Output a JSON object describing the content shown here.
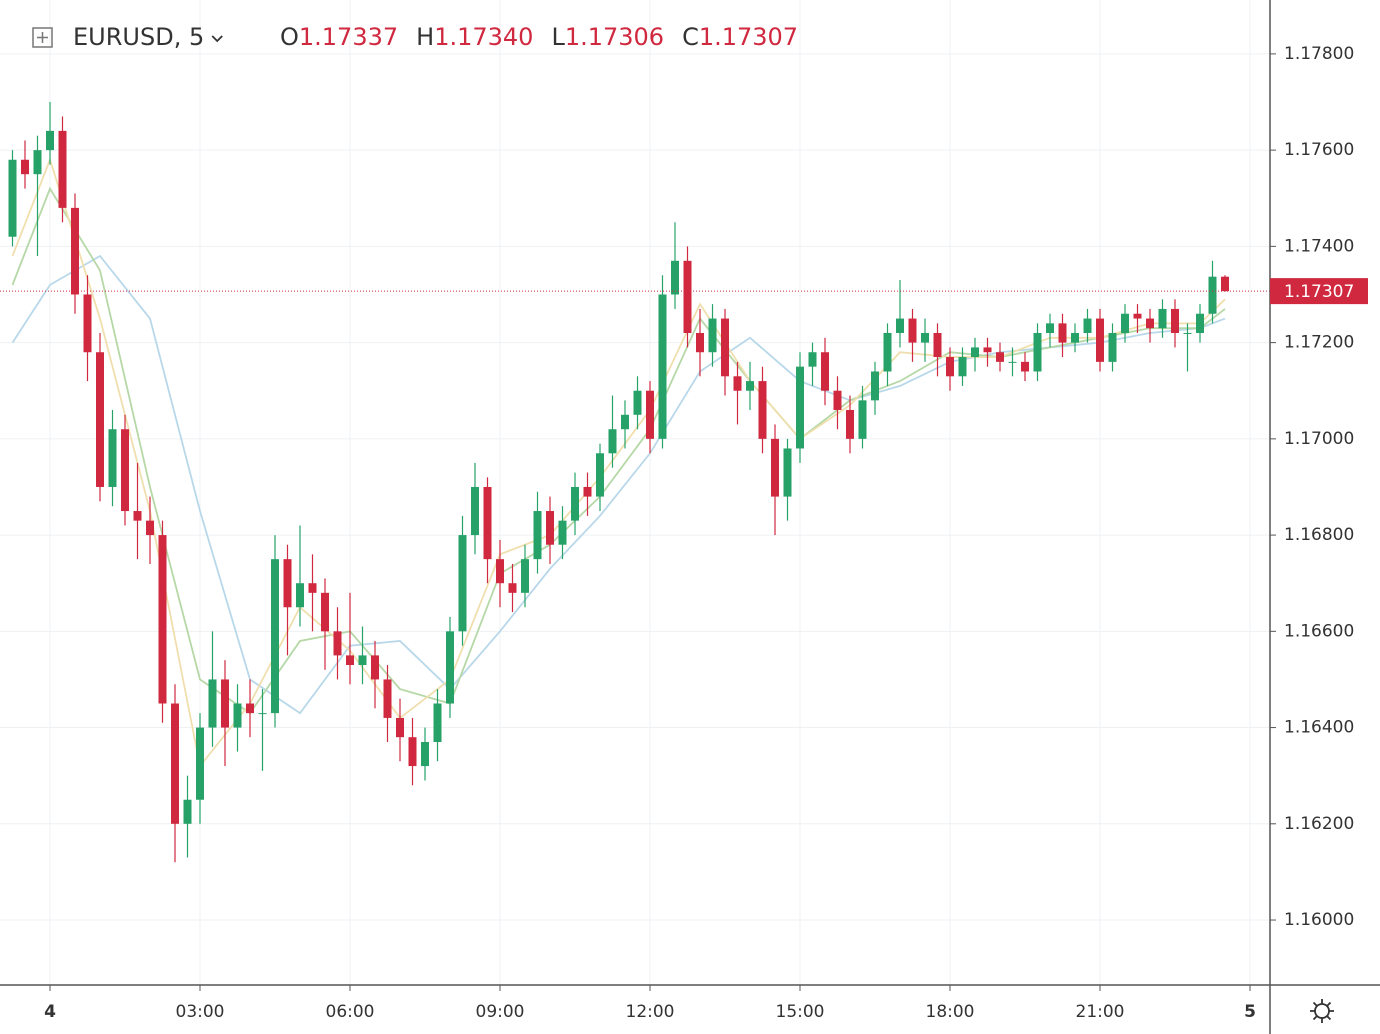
{
  "chart_data": {
    "type": "candlestick",
    "header": {
      "symbol": "EURUSD, 5",
      "open_label": "O",
      "open": "1.17337",
      "high_label": "H",
      "high": "1.17340",
      "low_label": "L",
      "low": "1.17306",
      "close_label": "C",
      "close": "1.17307"
    },
    "xlim": [
      -1,
      24.4
    ],
    "xticks": [
      {
        "value": 0,
        "label": "4"
      },
      {
        "value": 3,
        "label": "03:00"
      },
      {
        "value": 6,
        "label": "06:00"
      },
      {
        "value": 9,
        "label": "09:00"
      },
      {
        "value": 12,
        "label": "12:00"
      },
      {
        "value": 15,
        "label": "15:00"
      },
      {
        "value": 18,
        "label": "18:00"
      },
      {
        "value": 21,
        "label": "21:00"
      },
      {
        "value": 24,
        "label": "5"
      }
    ],
    "ylim": [
      1.15865,
      1.17912
    ],
    "yticks": [
      {
        "value": 1.16,
        "label": "1.16000"
      },
      {
        "value": 1.162,
        "label": "1.16200"
      },
      {
        "value": 1.164,
        "label": "1.16400"
      },
      {
        "value": 1.166,
        "label": "1.16600"
      },
      {
        "value": 1.168,
        "label": "1.16800"
      },
      {
        "value": 1.17,
        "label": "1.17000"
      },
      {
        "value": 1.172,
        "label": "1.17200"
      },
      {
        "value": 1.174,
        "label": "1.17400"
      },
      {
        "value": 1.176,
        "label": "1.17600"
      },
      {
        "value": 1.178,
        "label": "1.17800"
      }
    ],
    "grid": true,
    "last_price": {
      "value": 1.17307,
      "label": "1.17307"
    },
    "up_color": "#26a269",
    "down_color": "#d0283f",
    "series": [
      {
        "x": [
          -0.75,
          -0.5,
          -0.25,
          0,
          0.25,
          0.5,
          0.75,
          1,
          1.25,
          1.5,
          1.75,
          2,
          2.25,
          2.5,
          2.75,
          3,
          3.25,
          3.5,
          3.75,
          4,
          4.25,
          4.5,
          4.75,
          5,
          5.25,
          5.5,
          5.75,
          6,
          6.25,
          6.5,
          6.75,
          7,
          7.25,
          7.5,
          7.75,
          8,
          8.25,
          8.5,
          8.75,
          9,
          9.25,
          9.5,
          9.75,
          10,
          10.25,
          10.5,
          10.75,
          11,
          11.25,
          11.5,
          11.75,
          12,
          12.25,
          12.5,
          12.75,
          13,
          13.25,
          13.5,
          13.75,
          14,
          14.25,
          14.5,
          14.75,
          15,
          15.25,
          15.5,
          15.75,
          16,
          16.25,
          16.5,
          16.75,
          17,
          17.25,
          17.5,
          17.75,
          18,
          18.25,
          18.5,
          18.75,
          19,
          19.25,
          19.5,
          19.75,
          20,
          20.25,
          20.5,
          20.75,
          21,
          21.25,
          21.5,
          21.75,
          22,
          22.25,
          22.5,
          22.75,
          23,
          23.25,
          23.5
        ],
        "ohlc": [
          [
            1.1742,
            1.176,
            1.174,
            1.1758
          ],
          [
            1.1758,
            1.1762,
            1.1752,
            1.1755
          ],
          [
            1.1755,
            1.1763,
            1.1738,
            1.176
          ],
          [
            1.176,
            1.177,
            1.1757,
            1.1764
          ],
          [
            1.1764,
            1.1767,
            1.1745,
            1.1748
          ],
          [
            1.1748,
            1.1751,
            1.1726,
            1.173
          ],
          [
            1.173,
            1.1734,
            1.1712,
            1.1718
          ],
          [
            1.1718,
            1.1722,
            1.1687,
            1.169
          ],
          [
            1.169,
            1.1706,
            1.1686,
            1.1702
          ],
          [
            1.1702,
            1.1705,
            1.1682,
            1.1685
          ],
          [
            1.1685,
            1.1695,
            1.1675,
            1.1683
          ],
          [
            1.1683,
            1.1688,
            1.1674,
            1.168
          ],
          [
            1.168,
            1.1683,
            1.1641,
            1.1645
          ],
          [
            1.1645,
            1.1649,
            1.1612,
            1.162
          ],
          [
            1.162,
            1.163,
            1.1613,
            1.1625
          ],
          [
            1.1625,
            1.1643,
            1.162,
            1.164
          ],
          [
            1.164,
            1.166,
            1.1636,
            1.165
          ],
          [
            1.165,
            1.1654,
            1.1632,
            1.164
          ],
          [
            1.164,
            1.1649,
            1.1635,
            1.1645
          ],
          [
            1.1645,
            1.165,
            1.1638,
            1.1643
          ],
          [
            1.1643,
            1.1648,
            1.1631,
            1.1643
          ],
          [
            1.1643,
            1.168,
            1.164,
            1.1675
          ],
          [
            1.1675,
            1.1678,
            1.1655,
            1.1665
          ],
          [
            1.1665,
            1.1682,
            1.1661,
            1.167
          ],
          [
            1.167,
            1.1676,
            1.166,
            1.1668
          ],
          [
            1.1668,
            1.1671,
            1.1652,
            1.166
          ],
          [
            1.166,
            1.1665,
            1.165,
            1.1655
          ],
          [
            1.1655,
            1.1668,
            1.1649,
            1.1653
          ],
          [
            1.1653,
            1.1661,
            1.1649,
            1.1655
          ],
          [
            1.1655,
            1.1658,
            1.1644,
            1.165
          ],
          [
            1.165,
            1.1653,
            1.1637,
            1.1642
          ],
          [
            1.1642,
            1.1646,
            1.1633,
            1.1638
          ],
          [
            1.1638,
            1.1642,
            1.1628,
            1.1632
          ],
          [
            1.1632,
            1.164,
            1.1629,
            1.1637
          ],
          [
            1.1637,
            1.1648,
            1.1633,
            1.1645
          ],
          [
            1.1645,
            1.1663,
            1.1642,
            1.166
          ],
          [
            1.166,
            1.1684,
            1.1657,
            1.168
          ],
          [
            1.168,
            1.1695,
            1.1676,
            1.169
          ],
          [
            1.169,
            1.1692,
            1.167,
            1.1675
          ],
          [
            1.1675,
            1.1679,
            1.1665,
            1.167
          ],
          [
            1.167,
            1.1674,
            1.1664,
            1.1668
          ],
          [
            1.1668,
            1.1678,
            1.1665,
            1.1675
          ],
          [
            1.1675,
            1.1689,
            1.1672,
            1.1685
          ],
          [
            1.1685,
            1.1688,
            1.1674,
            1.1678
          ],
          [
            1.1678,
            1.1686,
            1.1675,
            1.1683
          ],
          [
            1.1683,
            1.1693,
            1.168,
            1.169
          ],
          [
            1.169,
            1.1693,
            1.1684,
            1.1688
          ],
          [
            1.1688,
            1.1699,
            1.1685,
            1.1697
          ],
          [
            1.1697,
            1.1709,
            1.1694,
            1.1702
          ],
          [
            1.1702,
            1.1708,
            1.1698,
            1.1705
          ],
          [
            1.1705,
            1.1713,
            1.1702,
            1.171
          ],
          [
            1.171,
            1.1712,
            1.1697,
            1.17
          ],
          [
            1.17,
            1.1734,
            1.1698,
            1.173
          ],
          [
            1.173,
            1.1745,
            1.1727,
            1.1737
          ],
          [
            1.1737,
            1.174,
            1.1719,
            1.1722
          ],
          [
            1.1722,
            1.1727,
            1.1713,
            1.1718
          ],
          [
            1.1718,
            1.1728,
            1.1715,
            1.1725
          ],
          [
            1.1725,
            1.1727,
            1.1709,
            1.1713
          ],
          [
            1.1713,
            1.1716,
            1.1703,
            1.171
          ],
          [
            1.171,
            1.1716,
            1.1706,
            1.1712
          ],
          [
            1.1712,
            1.1715,
            1.1697,
            1.17
          ],
          [
            1.17,
            1.1703,
            1.168,
            1.1688
          ],
          [
            1.1688,
            1.17,
            1.1683,
            1.1698
          ],
          [
            1.1698,
            1.1718,
            1.1695,
            1.1715
          ],
          [
            1.1715,
            1.172,
            1.1711,
            1.1718
          ],
          [
            1.1718,
            1.1721,
            1.1707,
            1.171
          ],
          [
            1.171,
            1.1713,
            1.1702,
            1.1706
          ],
          [
            1.1706,
            1.1709,
            1.1697,
            1.17
          ],
          [
            1.17,
            1.1711,
            1.1698,
            1.1708
          ],
          [
            1.1708,
            1.1716,
            1.1705,
            1.1714
          ],
          [
            1.1714,
            1.1724,
            1.1711,
            1.1722
          ],
          [
            1.1722,
            1.1733,
            1.1719,
            1.1725
          ],
          [
            1.1725,
            1.1727,
            1.1716,
            1.172
          ],
          [
            1.172,
            1.1725,
            1.1716,
            1.1722
          ],
          [
            1.1722,
            1.1724,
            1.1713,
            1.1717
          ],
          [
            1.1717,
            1.1719,
            1.171,
            1.1713
          ],
          [
            1.1713,
            1.1719,
            1.1711,
            1.1717
          ],
          [
            1.1717,
            1.1721,
            1.1714,
            1.1719
          ],
          [
            1.1719,
            1.1721,
            1.1715,
            1.1718
          ],
          [
            1.1718,
            1.172,
            1.1714,
            1.1716
          ],
          [
            1.1716,
            1.1719,
            1.1713,
            1.1716
          ],
          [
            1.1716,
            1.1718,
            1.1712,
            1.1714
          ],
          [
            1.1714,
            1.1724,
            1.1712,
            1.1722
          ],
          [
            1.1722,
            1.1726,
            1.1719,
            1.1724
          ],
          [
            1.1724,
            1.1726,
            1.1717,
            1.172
          ],
          [
            1.172,
            1.1724,
            1.1718,
            1.1722
          ],
          [
            1.1722,
            1.1727,
            1.172,
            1.1725
          ],
          [
            1.1725,
            1.1727,
            1.1714,
            1.1716
          ],
          [
            1.1716,
            1.1724,
            1.1714,
            1.1722
          ],
          [
            1.1722,
            1.1728,
            1.172,
            1.1726
          ],
          [
            1.1726,
            1.1728,
            1.1722,
            1.1725
          ],
          [
            1.1725,
            1.1727,
            1.172,
            1.1723
          ],
          [
            1.1723,
            1.1729,
            1.1721,
            1.1727
          ],
          [
            1.1727,
            1.1729,
            1.1719,
            1.1722
          ],
          [
            1.1722,
            1.1724,
            1.1714,
            1.1722
          ],
          [
            1.1722,
            1.1728,
            1.172,
            1.1726
          ],
          [
            1.1726,
            1.1737,
            1.1724,
            1.17337
          ],
          [
            1.17337,
            1.1734,
            1.17306,
            1.17307
          ]
        ]
      }
    ],
    "lines": [
      {
        "color": "#b8d8ea",
        "x": [
          -0.75,
          0,
          1,
          2,
          3,
          4,
          5,
          6,
          7,
          8,
          9,
          10,
          11,
          12,
          13,
          14,
          15,
          16,
          17,
          18,
          19,
          20,
          21,
          22,
          23,
          23.5
        ],
        "values": [
          1.172,
          1.1732,
          1.1738,
          1.1725,
          1.1685,
          1.165,
          1.1643,
          1.1657,
          1.1658,
          1.1648,
          1.166,
          1.1673,
          1.1684,
          1.1697,
          1.1714,
          1.1721,
          1.1712,
          1.1708,
          1.1711,
          1.1716,
          1.1718,
          1.1719,
          1.172,
          1.1722,
          1.1723,
          1.1725
        ]
      },
      {
        "color": "#b5d8a6",
        "x": [
          -0.75,
          0,
          1,
          2,
          3,
          4,
          5,
          6,
          7,
          8,
          9,
          10,
          11,
          12,
          13,
          14,
          15,
          16,
          17,
          18,
          19,
          20,
          21,
          22,
          23,
          23.5
        ],
        "values": [
          1.1732,
          1.1752,
          1.1735,
          1.169,
          1.165,
          1.1643,
          1.1658,
          1.166,
          1.1648,
          1.1645,
          1.1672,
          1.1678,
          1.1688,
          1.1702,
          1.1725,
          1.1712,
          1.17,
          1.1708,
          1.1712,
          1.1718,
          1.1717,
          1.1719,
          1.1721,
          1.1723,
          1.1723,
          1.1727
        ]
      },
      {
        "color": "#f0dfae",
        "x": [
          -0.75,
          0,
          1,
          2,
          3,
          4,
          5,
          6,
          7,
          8,
          9,
          10,
          11,
          12,
          13,
          14,
          15,
          16,
          17,
          18,
          19,
          20,
          21,
          22,
          23,
          23.5
        ],
        "values": [
          1.1738,
          1.1758,
          1.1725,
          1.1685,
          1.1632,
          1.1645,
          1.1665,
          1.1656,
          1.1642,
          1.165,
          1.1676,
          1.168,
          1.1692,
          1.1706,
          1.1728,
          1.1712,
          1.17,
          1.1707,
          1.1718,
          1.1717,
          1.1717,
          1.1721,
          1.1721,
          1.1724,
          1.1724,
          1.1729
        ]
      }
    ]
  }
}
